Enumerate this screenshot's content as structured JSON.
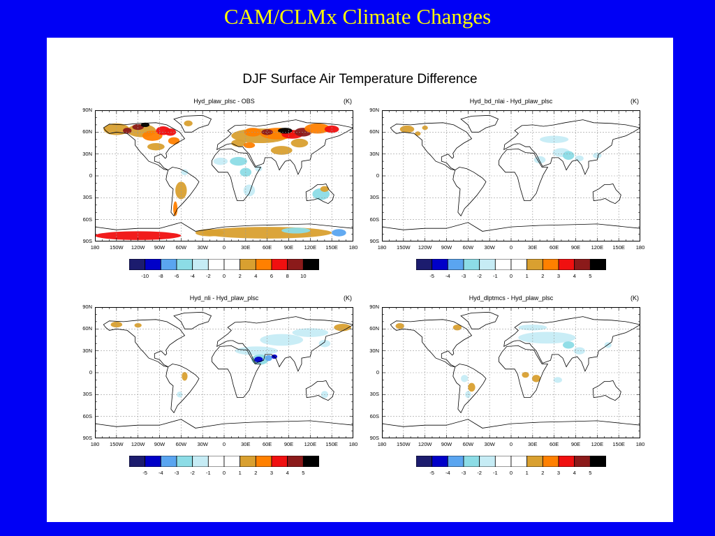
{
  "slide": {
    "title": "CAM/CLMx Climate Changes"
  },
  "figure": {
    "title": "DJF Surface Air Temperature Difference"
  },
  "lat_ticks": [
    "90N",
    "60N",
    "30N",
    "0",
    "30S",
    "60S",
    "90S"
  ],
  "lon_ticks": [
    "180",
    "150W",
    "120W",
    "90W",
    "60W",
    "30W",
    "0",
    "30E",
    "60E",
    "90E",
    "120E",
    "150E",
    "180"
  ],
  "colors": [
    "#1c1c6e",
    "#0000c8",
    "#5aa5f0",
    "#8cdce6",
    "#c6ecf5",
    "#ffffff",
    "#ffffff",
    "#d9a030",
    "#ff8000",
    "#f01010",
    "#8b1a1a",
    "#000000"
  ],
  "panels": [
    {
      "title": "Hyd_plaw_plsc - OBS",
      "unit": "(K)",
      "colorbar": [
        "-10",
        "-8",
        "-6",
        "-4",
        "-2",
        "0",
        "2",
        "4",
        "6",
        "8",
        "10"
      ]
    },
    {
      "title": "Hyd_bd_nlai - Hyd_plaw_plsc",
      "unit": "(K)",
      "colorbar": [
        "-5",
        "-4",
        "-3",
        "-2",
        "-1",
        "0",
        "1",
        "2",
        "3",
        "4",
        "5"
      ]
    },
    {
      "title": "Hyd_nli - Hyd_plaw_plsc",
      "unit": "(K)",
      "colorbar": [
        "-5",
        "-4",
        "-3",
        "-2",
        "-1",
        "0",
        "1",
        "2",
        "3",
        "4",
        "5"
      ]
    },
    {
      "title": "Hyd_dlptmcs - Hyd_plaw_plsc",
      "unit": "(K)",
      "colorbar": [
        "-5",
        "-4",
        "-3",
        "-2",
        "-1",
        "0",
        "1",
        "2",
        "3",
        "4",
        "5"
      ]
    }
  ]
}
